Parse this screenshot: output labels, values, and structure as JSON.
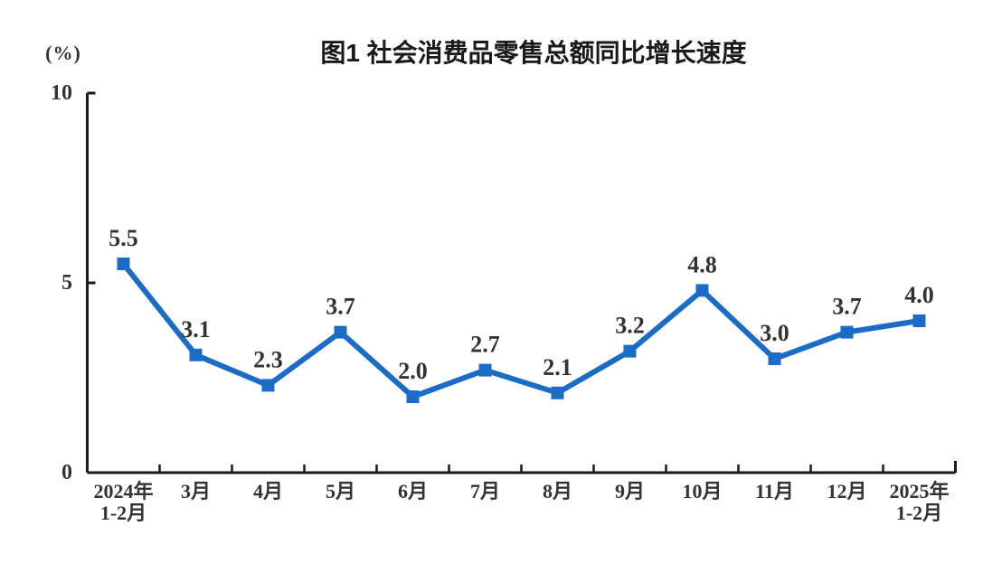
{
  "chart_data": {
    "type": "line",
    "title": "图1 社会消费品零售总额同比增长速度",
    "unit_label": "(%)",
    "categories": [
      [
        "2024年",
        "1-2月"
      ],
      [
        "3月"
      ],
      [
        "4月"
      ],
      [
        "5月"
      ],
      [
        "6月"
      ],
      [
        "7月"
      ],
      [
        "8月"
      ],
      [
        "9月"
      ],
      [
        "10月"
      ],
      [
        "11月"
      ],
      [
        "12月"
      ],
      [
        "2025年",
        "1-2月"
      ]
    ],
    "values": [
      5.5,
      3.1,
      2.3,
      3.7,
      2.0,
      2.7,
      2.1,
      3.2,
      4.8,
      3.0,
      3.7,
      4.0
    ],
    "ylim": [
      0,
      10
    ],
    "yticks": [
      0,
      5,
      10
    ],
    "grid": false,
    "legend": "none",
    "marker": "square",
    "colors": {
      "line": "#1b6cc7",
      "marker": "#1b6cc7",
      "axis": "#1a1a1a",
      "label_text": "#333333",
      "title_text": "#1a1a1a"
    }
  }
}
